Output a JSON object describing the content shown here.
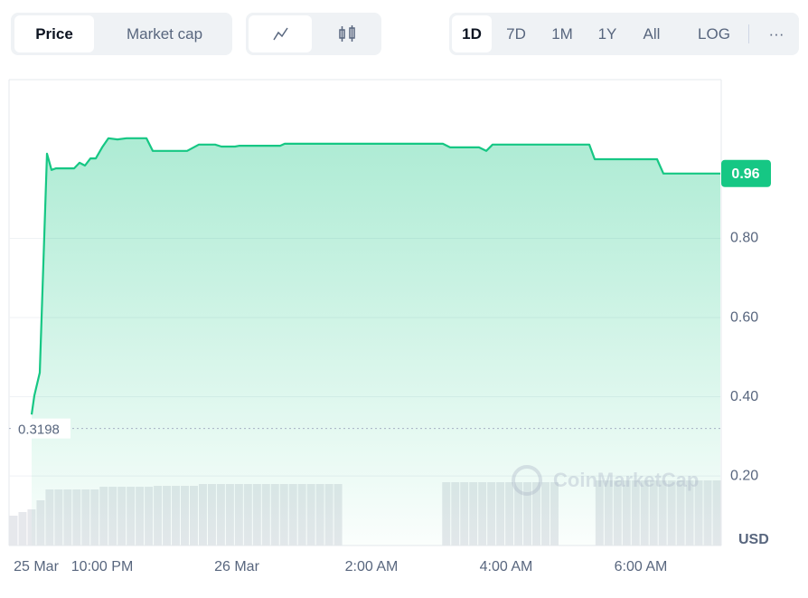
{
  "toolbar": {
    "metrics": [
      "Price",
      "Market cap"
    ],
    "ranges": [
      "1D",
      "7D",
      "1M",
      "1Y",
      "All"
    ],
    "log": "LOG",
    "more": "···"
  },
  "chart_data": {
    "type": "line",
    "color": "#16c784",
    "area": true,
    "x": [
      -3.047,
      -3.007,
      -2.926,
      -2.819,
      -2.752,
      -2.685,
      -2.416,
      -2.336,
      -2.255,
      -2.174,
      -2.094,
      -2.0,
      -1.906,
      -1.772,
      -1.638,
      -1.342,
      -1.248,
      -0.738,
      -0.564,
      -0.322,
      -0.228,
      -0.027,
      0.04,
      0.644,
      0.711,
      3.06,
      3.168,
      3.597,
      3.705,
      3.799,
      5.235,
      5.315,
      6.242,
      6.336,
      7.181
    ],
    "values": [
      0.355,
      0.403,
      0.461,
      1.014,
      0.973,
      0.977,
      0.977,
      0.991,
      0.984,
      1.002,
      1.002,
      1.03,
      1.053,
      1.05,
      1.053,
      1.053,
      1.021,
      1.021,
      1.037,
      1.037,
      1.032,
      1.032,
      1.034,
      1.034,
      1.039,
      1.039,
      1.03,
      1.03,
      1.021,
      1.037,
      1.037,
      1.0,
      1.0,
      0.964,
      0.964
    ],
    "xlim": [
      -3.383,
      7.195
    ],
    "ylim": [
      0.0242,
      1.2011
    ],
    "xticks": [
      {
        "value": -2.98,
        "label": "25 Mar"
      },
      {
        "value": -2,
        "label": "10:00 PM"
      },
      {
        "value": 0,
        "label": "26 Mar"
      },
      {
        "value": 2,
        "label": "2:00 AM"
      },
      {
        "value": 4,
        "label": "4:00 AM"
      },
      {
        "value": 6,
        "label": "6:00 AM"
      }
    ],
    "yticks": [
      {
        "value": 0.2,
        "label": "0.20"
      },
      {
        "value": 0.4,
        "label": "0.40"
      },
      {
        "value": 0.6,
        "label": "0.60"
      },
      {
        "value": 0.8,
        "label": "0.80"
      }
    ],
    "grid": true,
    "baseline": 0.3198,
    "current": {
      "value": 0.964,
      "label": "0.96"
    },
    "currency_label": "USD",
    "watermark": "CoinMarketCap",
    "volume": {
      "color": "#e6e8ec",
      "ylim": [
        0,
        100
      ],
      "values": [
        33,
        37,
        40,
        50,
        62,
        62,
        62,
        62,
        62,
        62,
        65,
        65,
        65,
        65,
        65,
        65,
        66,
        66,
        66,
        66,
        66,
        68,
        68,
        68,
        68,
        68,
        68,
        68,
        68,
        68,
        68,
        68,
        68,
        68,
        68,
        68,
        68,
        null,
        null,
        null,
        null,
        null,
        null,
        null,
        null,
        null,
        null,
        null,
        70,
        70,
        70,
        70,
        70,
        70,
        70,
        70,
        70,
        70,
        70,
        70,
        70,
        null,
        null,
        null,
        null,
        72,
        72,
        72,
        72,
        72,
        72,
        72,
        72,
        72,
        72,
        72,
        72,
        72,
        72
      ]
    }
  }
}
